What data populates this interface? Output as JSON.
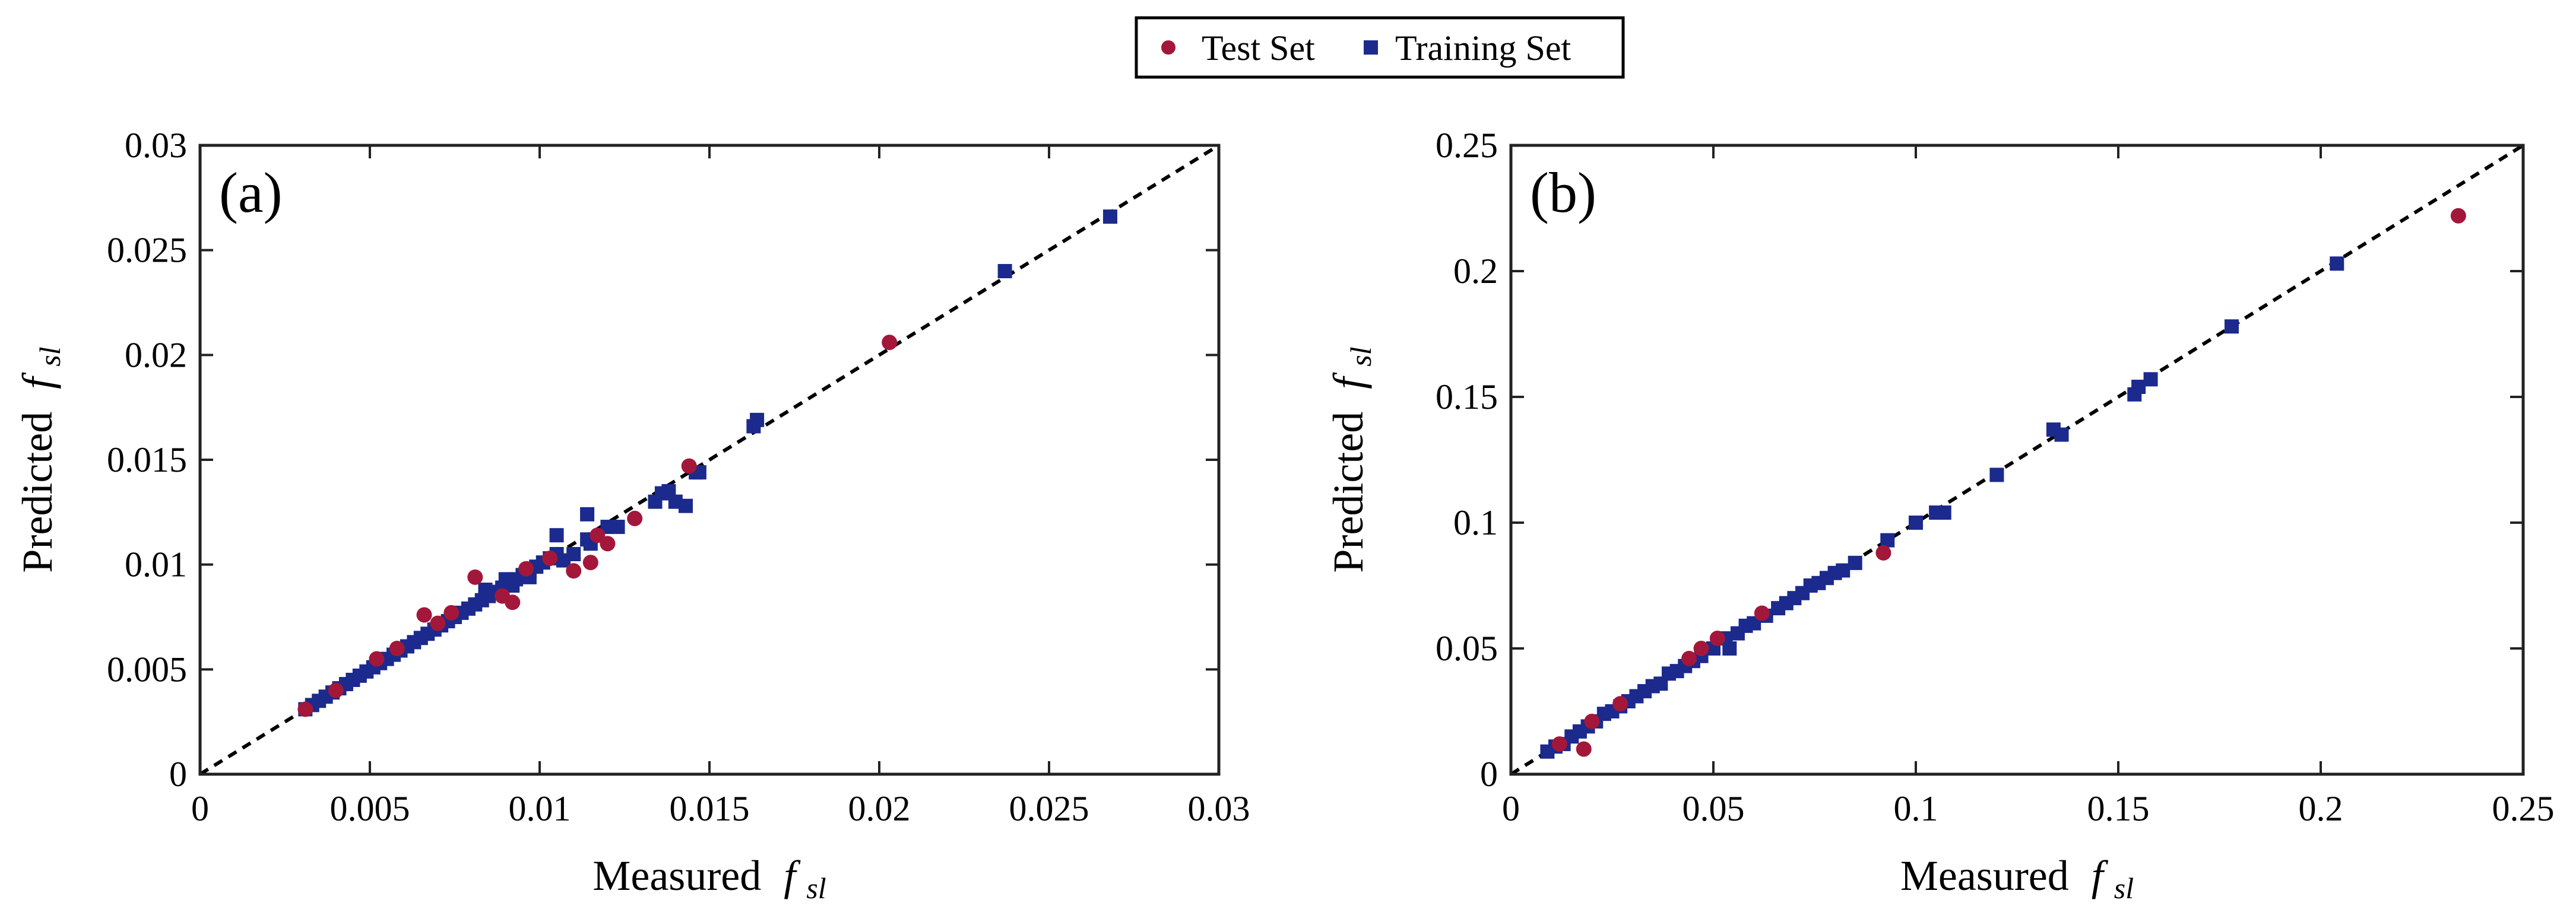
{
  "legend": {
    "entries": [
      {
        "label": "Test Set",
        "marker": "circle",
        "color": "#A3173A"
      },
      {
        "label": "Training Set",
        "marker": "square",
        "color": "#1B2A8C"
      }
    ]
  },
  "colors": {
    "test": "#A3173A",
    "train": "#1B2A8C",
    "identity_line": "#000000"
  },
  "chart_data": [
    {
      "type": "scatter",
      "panel_label": "(a)",
      "xlabel": "Measured",
      "ylabel": "Predicted",
      "variable": "f",
      "variable_subscript": "sl",
      "xlim": [
        0,
        0.03
      ],
      "ylim": [
        0,
        0.03
      ],
      "xticks": [
        0,
        0.005,
        0.01,
        0.015,
        0.02,
        0.025,
        0.03
      ],
      "yticks": [
        0,
        0.005,
        0.01,
        0.015,
        0.02,
        0.025,
        0.03
      ],
      "xtick_labels": [
        "0",
        "0.005",
        "0.01",
        "0.015",
        "0.02",
        "0.025",
        "0.03"
      ],
      "ytick_labels": [
        "0",
        "0.005",
        "0.01",
        "0.015",
        "0.02",
        "0.025",
        "0.03"
      ],
      "identity_line": true,
      "series": [
        {
          "name": "Training Set",
          "marker": "square",
          "points": [
            [
              0.0031,
              0.0031
            ],
            [
              0.0033,
              0.0033
            ],
            [
              0.0035,
              0.0035
            ],
            [
              0.0037,
              0.0037
            ],
            [
              0.0039,
              0.0039
            ],
            [
              0.0041,
              0.0041
            ],
            [
              0.0043,
              0.0043
            ],
            [
              0.0045,
              0.0045
            ],
            [
              0.0047,
              0.0047
            ],
            [
              0.0049,
              0.0049
            ],
            [
              0.0051,
              0.0051
            ],
            [
              0.0053,
              0.0053
            ],
            [
              0.0055,
              0.0055
            ],
            [
              0.0057,
              0.0057
            ],
            [
              0.0059,
              0.0059
            ],
            [
              0.0061,
              0.0061
            ],
            [
              0.0063,
              0.0063
            ],
            [
              0.0065,
              0.0065
            ],
            [
              0.0067,
              0.0067
            ],
            [
              0.0069,
              0.0069
            ],
            [
              0.0071,
              0.0071
            ],
            [
              0.0073,
              0.0073
            ],
            [
              0.0075,
              0.0075
            ],
            [
              0.0077,
              0.0077
            ],
            [
              0.0079,
              0.0079
            ],
            [
              0.0081,
              0.0081
            ],
            [
              0.0083,
              0.0083
            ],
            [
              0.0085,
              0.0085
            ],
            [
              0.0087,
              0.0087
            ],
            [
              0.0089,
              0.0089
            ],
            [
              0.0091,
              0.0091
            ],
            [
              0.0093,
              0.0093
            ],
            [
              0.0095,
              0.0095
            ],
            [
              0.0097,
              0.0097
            ],
            [
              0.0099,
              0.0099
            ],
            [
              0.0101,
              0.0101
            ],
            [
              0.0103,
              0.0103
            ],
            [
              0.0105,
              0.0105
            ],
            [
              0.0084,
              0.0088
            ],
            [
              0.009,
              0.0093
            ],
            [
              0.0092,
              0.009
            ],
            [
              0.0097,
              0.0094
            ],
            [
              0.0105,
              0.0114
            ],
            [
              0.0107,
              0.0102
            ],
            [
              0.011,
              0.0105
            ],
            [
              0.0114,
              0.0124
            ],
            [
              0.0114,
              0.0112
            ],
            [
              0.0115,
              0.011
            ],
            [
              0.012,
              0.0118
            ],
            [
              0.0123,
              0.0118
            ],
            [
              0.0134,
              0.013
            ],
            [
              0.0136,
              0.0134
            ],
            [
              0.0138,
              0.0135
            ],
            [
              0.014,
              0.013
            ],
            [
              0.0143,
              0.0128
            ],
            [
              0.0146,
              0.0144
            ],
            [
              0.0147,
              0.0144
            ],
            [
              0.0163,
              0.0166
            ],
            [
              0.0164,
              0.0169
            ],
            [
              0.0237,
              0.024
            ],
            [
              0.0268,
              0.0266
            ]
          ]
        },
        {
          "name": "Test Set",
          "marker": "circle",
          "points": [
            [
              0.0031,
              0.0031
            ],
            [
              0.004,
              0.004
            ],
            [
              0.0052,
              0.0055
            ],
            [
              0.0058,
              0.006
            ],
            [
              0.0066,
              0.0076
            ],
            [
              0.007,
              0.0072
            ],
            [
              0.0074,
              0.0077
            ],
            [
              0.0081,
              0.0094
            ],
            [
              0.0089,
              0.0085
            ],
            [
              0.0092,
              0.0082
            ],
            [
              0.0096,
              0.0098
            ],
            [
              0.0103,
              0.0103
            ],
            [
              0.011,
              0.0097
            ],
            [
              0.0115,
              0.0101
            ],
            [
              0.0117,
              0.0114
            ],
            [
              0.012,
              0.011
            ],
            [
              0.0128,
              0.0122
            ],
            [
              0.0144,
              0.0147
            ],
            [
              0.0203,
              0.0206
            ]
          ]
        }
      ]
    },
    {
      "type": "scatter",
      "panel_label": "(b)",
      "xlabel": "Measured",
      "ylabel": "Predicted",
      "variable": "f",
      "variable_subscript": "sl",
      "xlim": [
        0,
        0.25
      ],
      "ylim": [
        0,
        0.25
      ],
      "xticks": [
        0,
        0.05,
        0.1,
        0.15,
        0.2,
        0.25
      ],
      "yticks": [
        0,
        0.05,
        0.1,
        0.15,
        0.2,
        0.25
      ],
      "xtick_labels": [
        "0",
        "0.05",
        "0.1",
        "0.15",
        "0.2",
        "0.25"
      ],
      "ytick_labels": [
        "0",
        "0.05",
        "0.1",
        "0.15",
        "0.2",
        "0.25"
      ],
      "identity_line": true,
      "series": [
        {
          "name": "Training Set",
          "marker": "square",
          "points": [
            [
              0.009,
              0.009
            ],
            [
              0.011,
              0.011
            ],
            [
              0.013,
              0.012
            ],
            [
              0.015,
              0.015
            ],
            [
              0.017,
              0.017
            ],
            [
              0.019,
              0.019
            ],
            [
              0.021,
              0.021
            ],
            [
              0.023,
              0.024
            ],
            [
              0.025,
              0.025
            ],
            [
              0.027,
              0.027
            ],
            [
              0.029,
              0.029
            ],
            [
              0.031,
              0.031
            ],
            [
              0.033,
              0.033
            ],
            [
              0.035,
              0.035
            ],
            [
              0.037,
              0.036
            ],
            [
              0.039,
              0.04
            ],
            [
              0.041,
              0.041
            ],
            [
              0.043,
              0.043
            ],
            [
              0.045,
              0.045
            ],
            [
              0.047,
              0.047
            ],
            [
              0.05,
              0.05
            ],
            [
              0.053,
              0.054
            ],
            [
              0.054,
              0.05
            ],
            [
              0.056,
              0.056
            ],
            [
              0.058,
              0.059
            ],
            [
              0.06,
              0.06
            ],
            [
              0.063,
              0.063
            ],
            [
              0.066,
              0.066
            ],
            [
              0.068,
              0.068
            ],
            [
              0.07,
              0.07
            ],
            [
              0.072,
              0.072
            ],
            [
              0.074,
              0.075
            ],
            [
              0.076,
              0.076
            ],
            [
              0.078,
              0.078
            ],
            [
              0.08,
              0.08
            ],
            [
              0.082,
              0.081
            ],
            [
              0.085,
              0.084
            ],
            [
              0.093,
              0.093
            ],
            [
              0.1,
              0.1
            ],
            [
              0.105,
              0.104
            ],
            [
              0.107,
              0.104
            ],
            [
              0.12,
              0.119
            ],
            [
              0.134,
              0.137
            ],
            [
              0.136,
              0.135
            ],
            [
              0.154,
              0.151
            ],
            [
              0.155,
              0.154
            ],
            [
              0.158,
              0.157
            ],
            [
              0.178,
              0.178
            ],
            [
              0.204,
              0.203
            ]
          ]
        },
        {
          "name": "Test Set",
          "marker": "circle",
          "points": [
            [
              0.012,
              0.012
            ],
            [
              0.018,
              0.01
            ],
            [
              0.02,
              0.021
            ],
            [
              0.027,
              0.028
            ],
            [
              0.044,
              0.046
            ],
            [
              0.047,
              0.05
            ],
            [
              0.051,
              0.054
            ],
            [
              0.062,
              0.064
            ],
            [
              0.092,
              0.088
            ],
            [
              0.234,
              0.222
            ]
          ]
        }
      ]
    }
  ]
}
